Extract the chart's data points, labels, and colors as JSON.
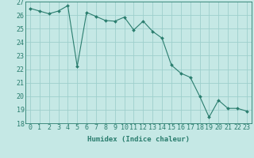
{
  "x": [
    0,
    1,
    2,
    3,
    4,
    5,
    6,
    7,
    8,
    9,
    10,
    11,
    12,
    13,
    14,
    15,
    16,
    17,
    18,
    19,
    20,
    21,
    22,
    23
  ],
  "y": [
    26.5,
    26.3,
    26.1,
    26.3,
    26.7,
    22.2,
    26.2,
    25.9,
    25.6,
    25.55,
    25.85,
    24.9,
    25.55,
    24.8,
    24.3,
    22.3,
    21.7,
    21.4,
    20.0,
    18.45,
    19.7,
    19.1,
    19.1,
    18.9
  ],
  "line_color": "#2a7d6e",
  "marker": "D",
  "marker_size": 2,
  "bg_color": "#c5e8e5",
  "grid_color": "#9ecfcc",
  "xlabel": "Humidex (Indice chaleur)",
  "xlim": [
    -0.5,
    23.5
  ],
  "ylim": [
    18,
    27
  ],
  "yticks": [
    18,
    19,
    20,
    21,
    22,
    23,
    24,
    25,
    26,
    27
  ],
  "xticks": [
    0,
    1,
    2,
    3,
    4,
    5,
    6,
    7,
    8,
    9,
    10,
    11,
    12,
    13,
    14,
    15,
    16,
    17,
    18,
    19,
    20,
    21,
    22,
    23
  ],
  "label_fontsize": 6.5,
  "tick_fontsize": 6.0
}
